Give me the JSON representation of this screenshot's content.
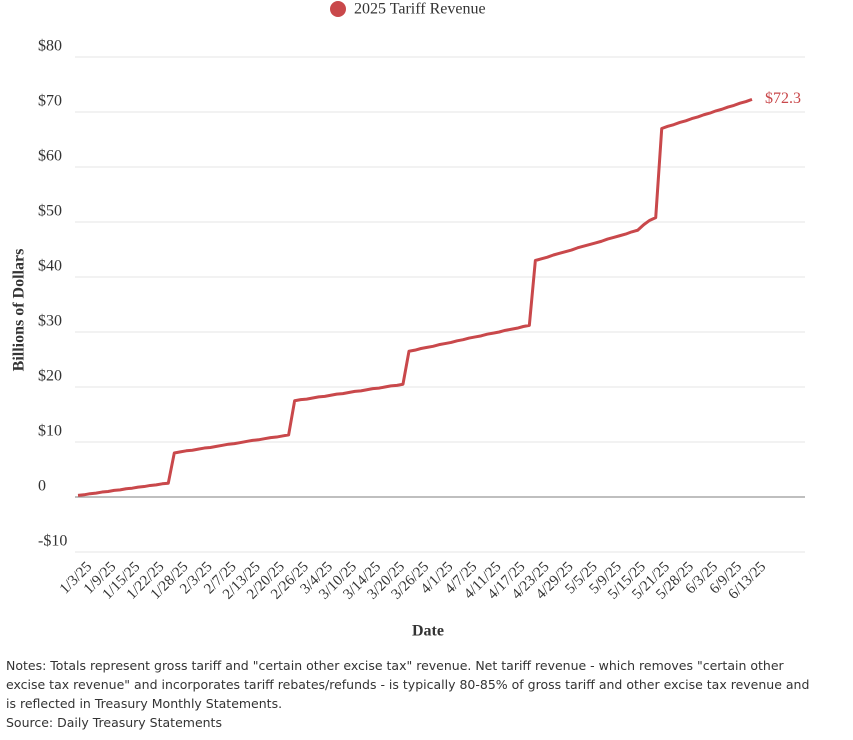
{
  "chart_data": {
    "type": "line",
    "legend": "2025 Tariff Revenue",
    "y_label": "Billions of Dollars",
    "x_label": "Date",
    "notes": "Notes: Totals represent gross tariff and \"certain other excise tax\" revenue. Net tariff revenue - which removes \"certain other excise tax revenue\" and incorporates tariff rebates/refunds - is typically 80-85% of gross tariff and other excise tax revenue and is reflected in Treasury Monthly Statements.",
    "source": "Source: Daily Treasury Statements",
    "ylim": [
      -10,
      80
    ],
    "yticks": [
      {
        "value": -10,
        "label": "-$10"
      },
      0,
      {
        "value": 10,
        "label": "$10"
      },
      {
        "value": 20,
        "label": "$20"
      },
      {
        "value": 30,
        "label": "$30"
      },
      {
        "value": 40,
        "label": "$40"
      },
      {
        "value": 50,
        "label": "$50"
      },
      {
        "value": 60,
        "label": "$60"
      },
      {
        "value": 70,
        "label": "$70"
      },
      {
        "value": 80,
        "label": "$80"
      }
    ],
    "grid": true,
    "categories": [
      "1/3/25",
      null,
      null,
      null,
      "1/9/25",
      null,
      null,
      null,
      "1/15/25",
      null,
      null,
      null,
      "1/22/25",
      null,
      null,
      null,
      "1/28/25",
      null,
      null,
      null,
      "2/3/25",
      null,
      null,
      null,
      "2/7/25",
      null,
      null,
      null,
      "2/13/25",
      null,
      null,
      null,
      "2/20/25",
      null,
      null,
      null,
      "2/26/25",
      null,
      null,
      null,
      "3/4/25",
      null,
      null,
      null,
      "3/10/25",
      null,
      null,
      null,
      "3/14/25",
      null,
      null,
      null,
      "3/20/25",
      null,
      null,
      null,
      "3/26/25",
      null,
      null,
      null,
      "4/1/25",
      null,
      null,
      null,
      "4/7/25",
      null,
      null,
      null,
      "4/11/25",
      null,
      null,
      null,
      "4/17/25",
      null,
      null,
      null,
      "4/23/25",
      null,
      null,
      null,
      "4/29/25",
      null,
      null,
      null,
      "5/5/25",
      null,
      null,
      null,
      "5/9/25",
      null,
      null,
      null,
      "5/15/25",
      null,
      null,
      null,
      "5/21/25",
      null,
      null,
      null,
      "5/28/25",
      null,
      null,
      null,
      "6/3/25",
      null,
      null,
      null,
      "6/9/25",
      null,
      null,
      null,
      "6/13/25"
    ],
    "series": [
      {
        "name": "2025 Tariff Revenue",
        "color": "#c9484b",
        "values": [
          0.3,
          0.4,
          0.6,
          0.7,
          0.9,
          1.0,
          1.2,
          1.3,
          1.5,
          1.6,
          1.8,
          1.9,
          2.1,
          2.2,
          2.4,
          2.5,
          8.0,
          8.2,
          8.4,
          8.5,
          8.7,
          8.9,
          9.0,
          9.2,
          9.4,
          9.6,
          9.7,
          9.9,
          10.1,
          10.3,
          10.4,
          10.6,
          10.8,
          10.9,
          11.1,
          11.3,
          17.5,
          17.7,
          17.8,
          18.0,
          18.2,
          18.3,
          18.5,
          18.7,
          18.8,
          19.0,
          19.2,
          19.3,
          19.5,
          19.7,
          19.8,
          20.0,
          20.2,
          20.3,
          20.5,
          26.5,
          26.7,
          27.0,
          27.2,
          27.4,
          27.7,
          27.9,
          28.1,
          28.4,
          28.6,
          28.9,
          29.1,
          29.3,
          29.6,
          29.8,
          30.0,
          30.3,
          30.5,
          30.7,
          31.0,
          31.2,
          43.0,
          43.3,
          43.6,
          44.0,
          44.3,
          44.6,
          44.9,
          45.3,
          45.6,
          45.9,
          46.2,
          46.5,
          46.9,
          47.2,
          47.5,
          47.8,
          48.2,
          48.5,
          49.5,
          50.3,
          50.8,
          67.0,
          67.4,
          67.7,
          68.1,
          68.4,
          68.8,
          69.1,
          69.5,
          69.8,
          70.2,
          70.5,
          70.9,
          71.2,
          71.6,
          71.9,
          72.3
        ],
        "value_labels": [
          null,
          null,
          null,
          null,
          null,
          null,
          null,
          null,
          null,
          null,
          null,
          null,
          null,
          null,
          null,
          null,
          null,
          null,
          null,
          null,
          null,
          null,
          null,
          null,
          null,
          null,
          null,
          null,
          null,
          null,
          null,
          null,
          null,
          null,
          null,
          null,
          null,
          null,
          null,
          null,
          null,
          null,
          null,
          null,
          null,
          null,
          null,
          null,
          null,
          null,
          null,
          null,
          null,
          null,
          null,
          null,
          null,
          null,
          null,
          null,
          null,
          null,
          null,
          null,
          null,
          null,
          null,
          null,
          null,
          null,
          null,
          null,
          null,
          null,
          null,
          null,
          null,
          null,
          null,
          null,
          null,
          null,
          null,
          null,
          null,
          null,
          null,
          null,
          null,
          null,
          null,
          null,
          null,
          null,
          null,
          null,
          null,
          null,
          null,
          null,
          null,
          null,
          null,
          null,
          null,
          null,
          null,
          null,
          null,
          null,
          null,
          null,
          "$72.3"
        ]
      }
    ]
  }
}
